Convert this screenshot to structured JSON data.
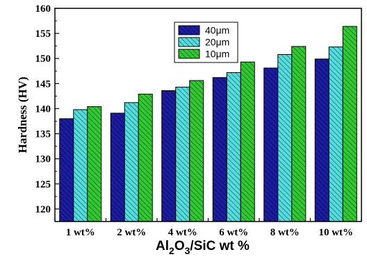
{
  "chart_data": {
    "type": "bar",
    "categories": [
      "1 wt%",
      "2 wt%",
      "4 wt%",
      "6 wt%",
      "8 wt%",
      "10 wt%"
    ],
    "series": [
      {
        "name": "40μm",
        "color": "#1c1c9e",
        "pattern": "hatch-blue",
        "values": [
          138.0,
          139.1,
          143.6,
          146.2,
          148.1,
          149.9
        ]
      },
      {
        "name": "20μm",
        "color": "#4cd8d8",
        "pattern": "hatch-cyan",
        "values": [
          139.8,
          141.2,
          144.3,
          147.2,
          150.8,
          152.3
        ]
      },
      {
        "name": "10μm",
        "color": "#2ec02e",
        "pattern": "hatch-green",
        "values": [
          140.4,
          142.9,
          145.6,
          149.3,
          152.4,
          156.4
        ]
      }
    ],
    "xlabel": {
      "part1": "Al",
      "sub1": "2",
      "part2": "O",
      "sub2": "3",
      "part3": "/SiC wt %"
    },
    "ylabel": "Hardness (HV)",
    "ylim": [
      117.5,
      160
    ],
    "yticks": [
      120,
      125,
      130,
      135,
      140,
      145,
      150,
      155,
      160
    ],
    "legend_position": "top-center",
    "grid": false
  }
}
